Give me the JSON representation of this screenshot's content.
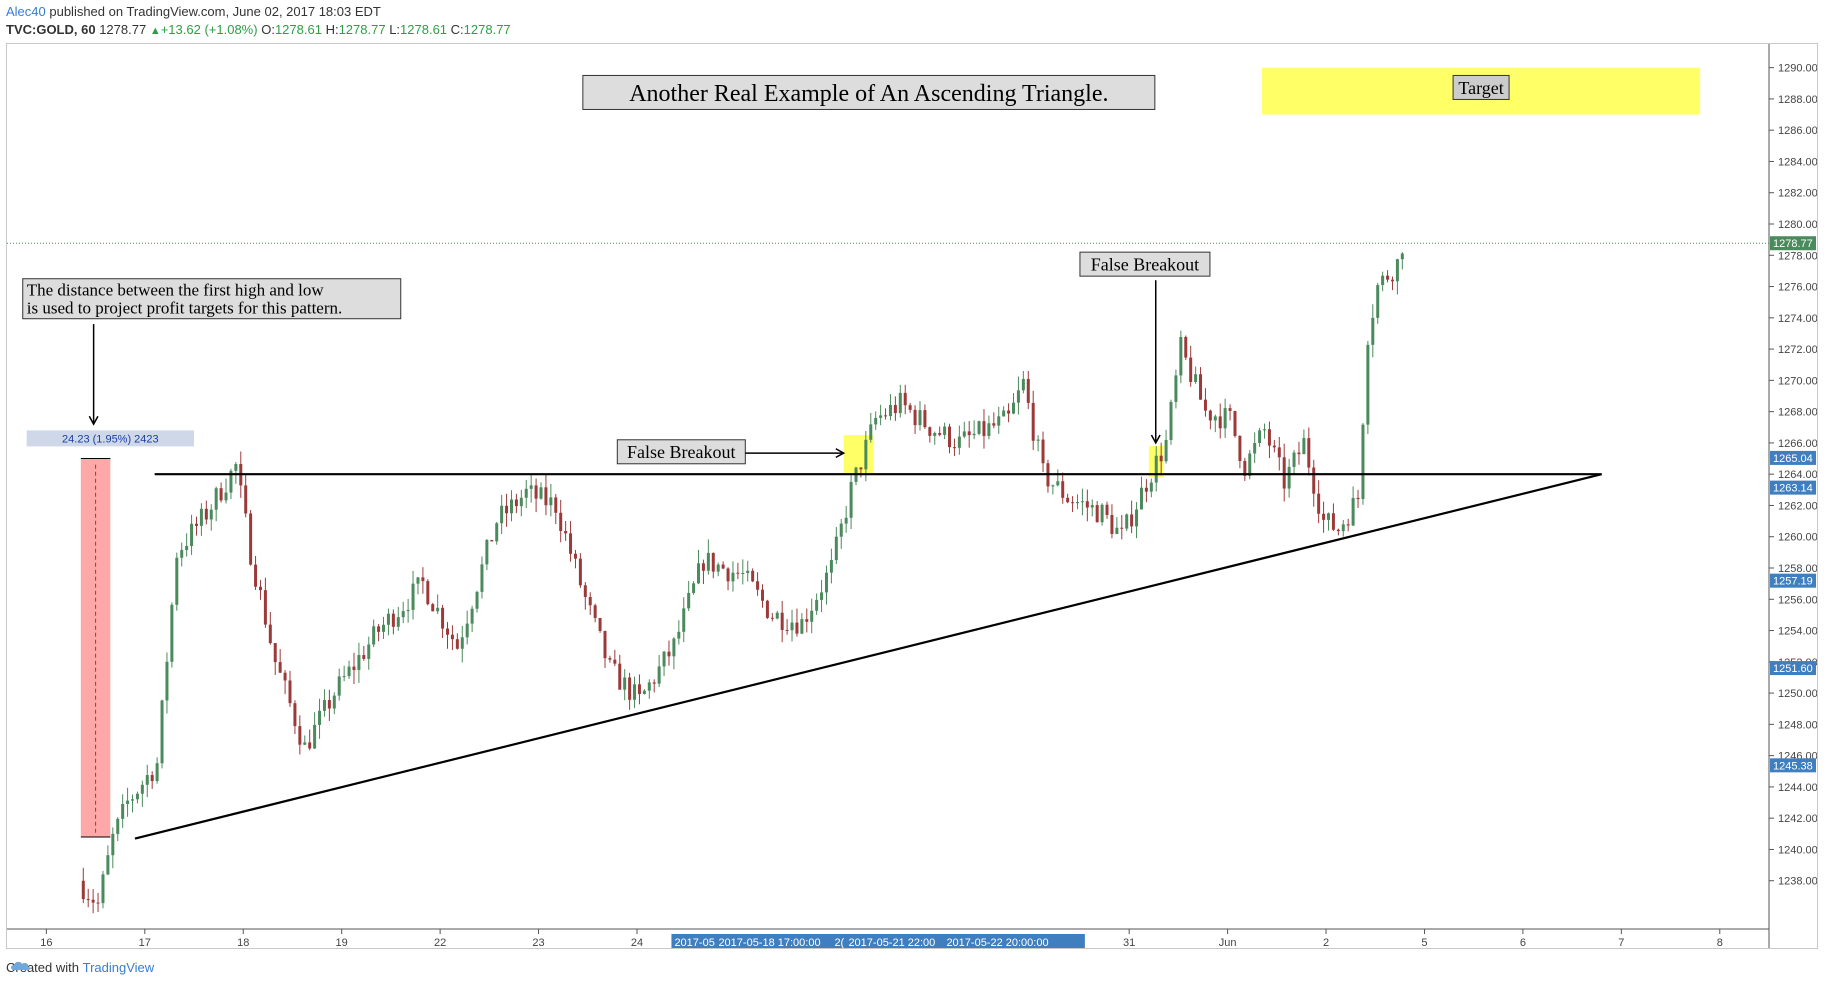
{
  "header": {
    "user": "Alec40",
    "published": " published on TradingView.com, June 02, 2017 18:03 EDT",
    "symbol": "TVC:GOLD, 60",
    "last": "1278.77",
    "change": "+13.62 (+1.08%)",
    "o_label": "O:",
    "o": "1278.61",
    "h_label": "H:",
    "h": "1278.77",
    "l_label": "L:",
    "l": "1278.61",
    "c_label": "C:",
    "c": "1278.77"
  },
  "footer": {
    "created_with": "Created with",
    "brand": "TradingView"
  },
  "colors": {
    "up": "#4a8a5c",
    "down": "#9c3a3a",
    "line": "#000000",
    "highlight": "#ffff66",
    "measure": "#ff9e9e",
    "price_tag": "#3f7fbf"
  },
  "annotations": {
    "title": "Another Real Example of An Ascending Triangle.",
    "target": "Target",
    "note_line1": "The distance between the first high and low",
    "note_line2": "is used to project profit targets for this pattern.",
    "measure": "24.23 (1.95%) 2423",
    "false_breakout_1": "False Breakout",
    "false_breakout_2": "False Breakout"
  },
  "chart_data": {
    "type": "candlestick",
    "ylim": [
      1236,
      1291
    ],
    "y_ticks": [
      "1290.00",
      "1288.00",
      "1286.00",
      "1284.00",
      "1282.00",
      "1280.00",
      "1278.00",
      "1276.00",
      "1274.00",
      "1272.00",
      "1270.00",
      "1268.00",
      "1266.00",
      "1264.00",
      "1262.00",
      "1260.00",
      "1258.00",
      "1256.00",
      "1254.00",
      "1252.00",
      "1250.00",
      "1248.00",
      "1246.00",
      "1244.00",
      "1242.00",
      "1240.00",
      "1238.00"
    ],
    "price_labels": [
      {
        "value": 1278.77,
        "text": "1278.77",
        "color": "#4a8a5c"
      },
      {
        "value": 1265.04,
        "text": "1265.04",
        "color": "#3f7fbf"
      },
      {
        "value": 1263.14,
        "text": "1263.14",
        "color": "#3f7fbf"
      },
      {
        "value": 1257.19,
        "text": "1257.19",
        "color": "#3f7fbf"
      },
      {
        "value": 1251.6,
        "text": "1251.60",
        "color": "#3f7fbf"
      },
      {
        "value": 1245.38,
        "text": "1245.38",
        "color": "#3f7fbf"
      }
    ],
    "x_ticks": [
      {
        "x": 0.4,
        "label": "16"
      },
      {
        "x": 1.4,
        "label": "17"
      },
      {
        "x": 2.4,
        "label": "18"
      },
      {
        "x": 3.4,
        "label": "19"
      },
      {
        "x": 4.4,
        "label": "22"
      },
      {
        "x": 5.4,
        "label": "23"
      },
      {
        "x": 6.4,
        "label": "24"
      },
      {
        "x": 11.4,
        "label": "31"
      },
      {
        "x": 12.4,
        "label": "Jun"
      },
      {
        "x": 13.4,
        "label": "2"
      },
      {
        "x": 14.4,
        "label": "5"
      },
      {
        "x": 15.4,
        "label": "6"
      },
      {
        "x": 16.4,
        "label": "7"
      },
      {
        "x": 17.4,
        "label": "8"
      }
    ],
    "x_highlight": [
      "2017-05",
      "2017-05-18 17:00:00",
      "2(",
      "2017-05-21 22:00",
      "2017-05-22 20:00:00"
    ],
    "xlim": [
      0,
      17.9
    ],
    "keypoints": [
      [
        0.75,
        1238
      ],
      [
        0.95,
        1236.5
      ],
      [
        1.1,
        1240.7
      ],
      [
        1.25,
        1243
      ],
      [
        1.55,
        1245.5
      ],
      [
        1.75,
        1259
      ],
      [
        2.05,
        1261.5
      ],
      [
        2.35,
        1264.5
      ],
      [
        2.5,
        1259
      ],
      [
        2.75,
        1252
      ],
      [
        3.05,
        1246.5
      ],
      [
        3.35,
        1250
      ],
      [
        3.8,
        1254
      ],
      [
        4.25,
        1257
      ],
      [
        4.6,
        1253
      ],
      [
        5.0,
        1261
      ],
      [
        5.3,
        1262.8
      ],
      [
        5.6,
        1262
      ],
      [
        5.9,
        1256
      ],
      [
        6.15,
        1251.5
      ],
      [
        6.45,
        1249.5
      ],
      [
        6.8,
        1253
      ],
      [
        7.1,
        1258.5
      ],
      [
        7.5,
        1257.5
      ],
      [
        7.8,
        1255
      ],
      [
        8.1,
        1254.5
      ],
      [
        8.4,
        1258
      ],
      [
        8.6,
        1263
      ],
      [
        8.85,
        1267.5
      ],
      [
        9.1,
        1268.5
      ],
      [
        9.4,
        1267
      ],
      [
        9.7,
        1266
      ],
      [
        10.2,
        1267.5
      ],
      [
        10.35,
        1269.8
      ],
      [
        10.55,
        1264
      ],
      [
        10.8,
        1262.5
      ],
      [
        11.15,
        1261.5
      ],
      [
        11.35,
        1260
      ],
      [
        11.6,
        1263.5
      ],
      [
        11.8,
        1266
      ],
      [
        11.95,
        1272
      ],
      [
        12.2,
        1268
      ],
      [
        12.45,
        1267.5
      ],
      [
        12.6,
        1264.5
      ],
      [
        12.8,
        1266.8
      ],
      [
        13.0,
        1263.5
      ],
      [
        13.2,
        1266
      ],
      [
        13.4,
        1261
      ],
      [
        13.55,
        1260.5
      ],
      [
        13.75,
        1262.5
      ],
      [
        13.85,
        1273
      ],
      [
        13.95,
        1276
      ],
      [
        14.15,
        1277.5
      ],
      [
        14.2,
        1278.77
      ]
    ],
    "ascending_line": {
      "from": [
        1.3,
        1240.7
      ],
      "to": [
        16.2,
        1264
      ]
    },
    "resistance_line": {
      "from": [
        1.5,
        1264
      ],
      "to": [
        16.2,
        1264
      ]
    },
    "current_price_line": 1278.77
  }
}
